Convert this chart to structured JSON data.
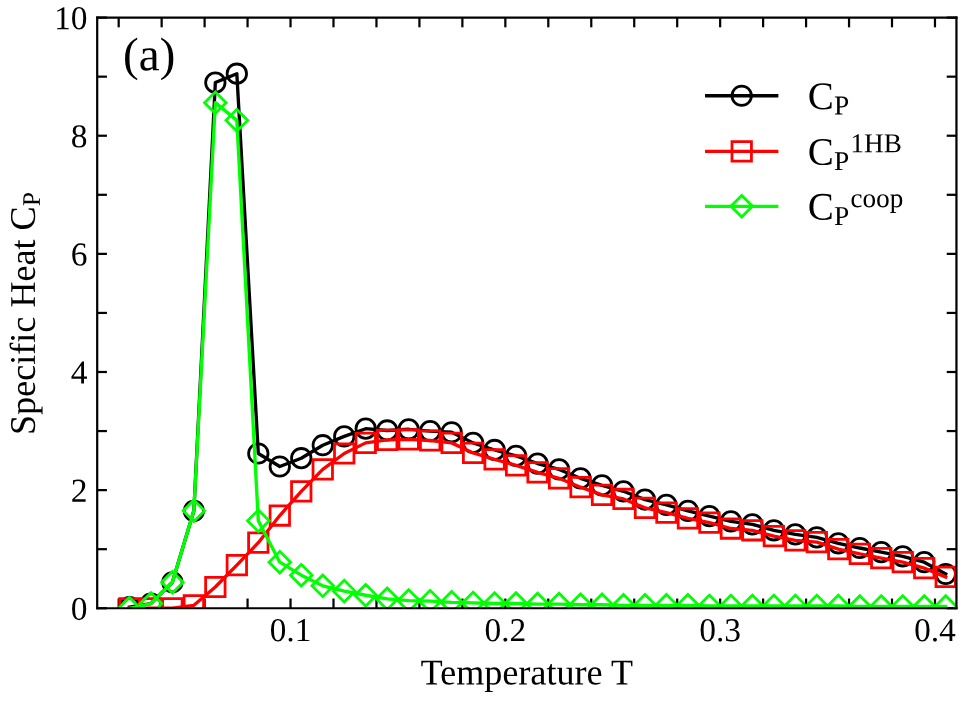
{
  "chart_data": {
    "type": "line",
    "xlabel": "Temperature T",
    "ylabel": "Specific Heat C$_{P}$",
    "annotations": [
      "(a)"
    ],
    "x": [
      0.025,
      0.035,
      0.045,
      0.055,
      0.065,
      0.075,
      0.085,
      0.095,
      0.105,
      0.115,
      0.125,
      0.135,
      0.145,
      0.155,
      0.165,
      0.175,
      0.185,
      0.195,
      0.205,
      0.215,
      0.225,
      0.235,
      0.245,
      0.255,
      0.265,
      0.275,
      0.285,
      0.295,
      0.305,
      0.315,
      0.325,
      0.335,
      0.345,
      0.355,
      0.365,
      0.375,
      0.385,
      0.395,
      0.405
    ],
    "series": [
      {
        "name": "C$_{P}$",
        "color": "#000000",
        "marker": "circle",
        "values": [
          0.02,
          0.08,
          0.44,
          1.65,
          8.9,
          9.05,
          2.62,
          2.4,
          2.54,
          2.76,
          2.91,
          3.04,
          3.01,
          3.03,
          3.0,
          2.98,
          2.8,
          2.68,
          2.58,
          2.45,
          2.35,
          2.2,
          2.08,
          1.98,
          1.84,
          1.75,
          1.65,
          1.56,
          1.47,
          1.42,
          1.32,
          1.25,
          1.2,
          1.1,
          1.02,
          0.95,
          0.88,
          0.78,
          0.58
        ]
      },
      {
        "name": "C$_{P}$$^{1HB}$",
        "color": "#ff0000",
        "marker": "square",
        "values": [
          0.0,
          0.0,
          0.0,
          0.05,
          0.36,
          0.73,
          1.11,
          1.57,
          1.98,
          2.35,
          2.62,
          2.8,
          2.85,
          2.86,
          2.84,
          2.8,
          2.63,
          2.52,
          2.42,
          2.3,
          2.2,
          2.05,
          1.92,
          1.85,
          1.7,
          1.62,
          1.52,
          1.45,
          1.35,
          1.32,
          1.22,
          1.15,
          1.12,
          1.0,
          0.92,
          0.85,
          0.78,
          0.68,
          0.53
        ]
      },
      {
        "name": "C$_{P}$$^{coop}$",
        "color": "#00ff00",
        "marker": "diamond",
        "values": [
          0.0,
          0.08,
          0.44,
          1.65,
          8.56,
          8.26,
          1.48,
          0.78,
          0.56,
          0.38,
          0.29,
          0.22,
          0.16,
          0.13,
          0.12,
          0.1,
          0.09,
          0.08,
          0.08,
          0.07,
          0.07,
          0.06,
          0.06,
          0.05,
          0.05,
          0.05,
          0.05,
          0.04,
          0.04,
          0.04,
          0.04,
          0.04,
          0.04,
          0.04,
          0.03,
          0.03,
          0.03,
          0.03,
          0.03
        ]
      }
    ],
    "xlim": [
      0.01,
      0.41
    ],
    "ylim": [
      0,
      10
    ],
    "xticks": [
      {
        "value": 0.02,
        "label": null
      },
      {
        "value": 0.04,
        "label": null
      },
      {
        "value": 0.06,
        "label": null
      },
      {
        "value": 0.08,
        "label": null
      },
      {
        "value": 0.1,
        "label": "0.1"
      },
      {
        "value": 0.12,
        "label": null
      },
      {
        "value": 0.14,
        "label": null
      },
      {
        "value": 0.16,
        "label": null
      },
      {
        "value": 0.18,
        "label": null
      },
      {
        "value": 0.2,
        "label": "0.2"
      },
      {
        "value": 0.22,
        "label": null
      },
      {
        "value": 0.24,
        "label": null
      },
      {
        "value": 0.26,
        "label": null
      },
      {
        "value": 0.28,
        "label": null
      },
      {
        "value": 0.3,
        "label": "0.3"
      },
      {
        "value": 0.32,
        "label": null
      },
      {
        "value": 0.34,
        "label": null
      },
      {
        "value": 0.36,
        "label": null
      },
      {
        "value": 0.38,
        "label": null
      },
      {
        "value": 0.4,
        "label": "0.4"
      }
    ],
    "yticks": [
      0,
      {
        "value": 1,
        "label": null
      },
      2,
      {
        "value": 3,
        "label": null
      },
      4,
      {
        "value": 5,
        "label": null
      },
      6,
      {
        "value": 7,
        "label": null
      },
      8,
      {
        "value": 9,
        "label": null
      },
      10
    ],
    "legend": "top right",
    "grid": false,
    "line_style": "solid"
  }
}
